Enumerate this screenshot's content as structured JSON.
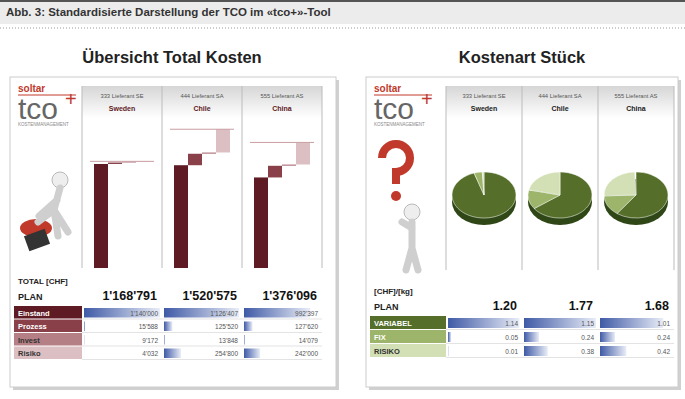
{
  "caption": "Abb. 3: Standardisierte Darstellung der TCO im «tco+»-Tool",
  "logo": {
    "brand": "soltar",
    "product": "tco",
    "plus": "+",
    "tagline": "KOSTENMANAGEMENT"
  },
  "chart_data": [
    {
      "type": "bar",
      "stacked": true,
      "title": "Übersicht Total Kosten",
      "categories": [
        "333 Lieferant SE",
        "444 Lieferant SA",
        "555 Lieferant AS"
      ],
      "countries": [
        "Sweden",
        "Chile",
        "China"
      ],
      "series": [
        {
          "name": "Einstand",
          "color": "#5e1b24",
          "values": [
            1140000,
            1126407,
            992397
          ],
          "value_labels": [
            "1'140'000",
            "1'126'407",
            "992'397"
          ]
        },
        {
          "name": "Prozess",
          "color": "#8a4049",
          "values": [
            15588,
            125520,
            127620
          ],
          "value_labels": [
            "15'588",
            "125'520",
            "127'620"
          ]
        },
        {
          "name": "Invest",
          "color": "#b57f86",
          "values": [
            9172,
            13848,
            14079
          ],
          "value_labels": [
            "9'172",
            "13'848",
            "14'079"
          ]
        },
        {
          "name": "Risiko",
          "color": "#dcbfc2",
          "values": [
            4032,
            254800,
            242000
          ],
          "value_labels": [
            "4'032",
            "254'800",
            "242'000"
          ]
        }
      ],
      "totals": {
        "label": "TOTAL [CHF]",
        "row": "PLAN",
        "values": [
          1168791,
          1520575,
          1376096
        ],
        "value_labels": [
          "1'168'791",
          "1'520'575",
          "1'376'096"
        ]
      },
      "ylim": [
        0,
        1600000
      ],
      "tick_labels": false,
      "data_labels": true
    },
    {
      "type": "pie",
      "title": "Kostenart Stück",
      "categories": [
        "333 Lieferant SE",
        "444 Lieferant SA",
        "555 Lieferant AS"
      ],
      "countries": [
        "Sweden",
        "Chile",
        "China"
      ],
      "series": [
        {
          "name": "VARIABEL",
          "color": "#556f2a",
          "values": [
            1.14,
            1.15,
            1.01
          ]
        },
        {
          "name": "FIX",
          "color": "#9cb56a",
          "values": [
            0.05,
            0.24,
            0.24
          ]
        },
        {
          "name": "RISIKO",
          "color": "#d3e0b5",
          "values": [
            0.01,
            0.38,
            0.42
          ]
        }
      ],
      "totals": {
        "label": "[CHF]/[kg]",
        "row": "PLAN",
        "values": [
          1.2,
          1.77,
          1.68
        ],
        "value_labels": [
          "1.20",
          "1.77",
          "1.68"
        ]
      },
      "data_labels": true
    }
  ]
}
